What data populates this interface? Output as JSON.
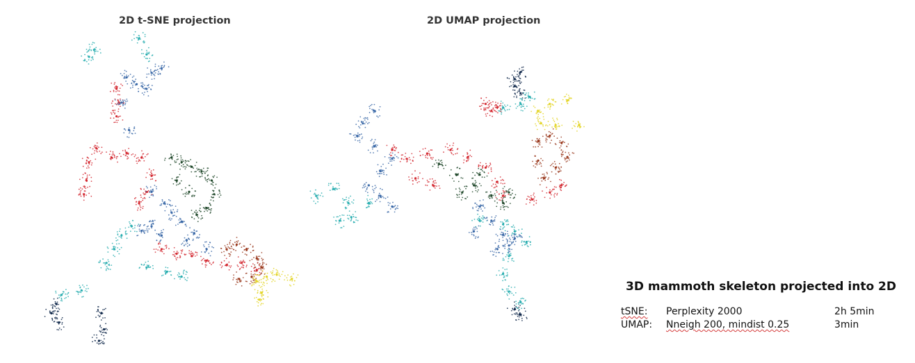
{
  "panels": [
    {
      "id": "tsne",
      "title": "2D t-SNE projection"
    },
    {
      "id": "umap",
      "title": "2D UMAP projection"
    }
  ],
  "annotation": {
    "title": "3D mammoth skeleton projected into 2D",
    "rows": [
      {
        "method": "tSNE:",
        "params": "Perplexity 2000",
        "time": "2h 5min"
      },
      {
        "method": "UMAP:",
        "params": "Nneigh 200, mindist 0.25",
        "time": "3min"
      }
    ]
  },
  "colors": {
    "red": "#d42a32",
    "blue": "#3c6aa8",
    "darkgreen": "#21492c",
    "teal": "#2aaeb0",
    "navy": "#142c4e",
    "brown": "#9a3a1e",
    "yellow": "#e4d62c"
  },
  "chart_data": [
    {
      "type": "scatter",
      "panel": "tsne",
      "title": "2D t-SNE projection",
      "xlabel": "",
      "ylabel": "",
      "axes": false,
      "grid": false,
      "legend": false,
      "series": [
        {
          "color": "red",
          "points": [
            [
              0.16,
              0.1
            ],
            [
              0.17,
              0.16
            ],
            [
              0.16,
              0.22
            ],
            [
              0.08,
              0.36
            ],
            [
              0.05,
              0.42
            ],
            [
              0.04,
              0.5
            ],
            [
              0.03,
              0.56
            ],
            [
              0.14,
              0.4
            ],
            [
              0.2,
              0.38
            ],
            [
              0.26,
              0.4
            ],
            [
              0.3,
              0.48
            ],
            [
              0.28,
              0.55
            ],
            [
              0.25,
              0.6
            ],
            [
              0.34,
              0.8
            ],
            [
              0.4,
              0.82
            ],
            [
              0.46,
              0.83
            ],
            [
              0.52,
              0.85
            ],
            [
              0.6,
              0.87
            ],
            [
              0.66,
              0.86
            ],
            [
              0.72,
              0.89
            ]
          ]
        },
        {
          "color": "blue",
          "points": [
            [
              0.2,
              0.05
            ],
            [
              0.24,
              0.08
            ],
            [
              0.28,
              0.1
            ],
            [
              0.3,
              0.03
            ],
            [
              0.34,
              0.01
            ],
            [
              0.18,
              0.16
            ],
            [
              0.21,
              0.28
            ],
            [
              0.3,
              0.55
            ],
            [
              0.35,
              0.6
            ],
            [
              0.38,
              0.64
            ],
            [
              0.42,
              0.68
            ],
            [
              0.3,
              0.7
            ],
            [
              0.26,
              0.72
            ],
            [
              0.34,
              0.74
            ],
            [
              0.44,
              0.76
            ],
            [
              0.47,
              0.73
            ],
            [
              0.52,
              0.8
            ]
          ]
        },
        {
          "color": "darkgreen",
          "points": [
            [
              0.38,
              0.4
            ],
            [
              0.42,
              0.42
            ],
            [
              0.46,
              0.44
            ],
            [
              0.5,
              0.46
            ],
            [
              0.54,
              0.5
            ],
            [
              0.55,
              0.56
            ],
            [
              0.52,
              0.62
            ],
            [
              0.48,
              0.65
            ],
            [
              0.4,
              0.5
            ],
            [
              0.45,
              0.55
            ]
          ]
        },
        {
          "color": "teal",
          "points": [
            [
              0.05,
              -0.04
            ],
            [
              0.07,
              -0.07
            ],
            [
              0.25,
              -0.12
            ],
            [
              0.28,
              -0.05
            ],
            [
              0.22,
              0.7
            ],
            [
              0.18,
              0.74
            ],
            [
              0.15,
              0.8
            ],
            [
              0.12,
              0.86
            ],
            [
              0.28,
              0.88
            ],
            [
              0.36,
              0.9
            ],
            [
              0.42,
              0.92
            ],
            [
              -0.06,
              1.0
            ],
            [
              0.02,
              0.98
            ]
          ]
        },
        {
          "color": "navy",
          "points": [
            [
              -0.08,
              1.04
            ],
            [
              -0.1,
              1.08
            ],
            [
              -0.07,
              1.12
            ],
            [
              0.1,
              1.08
            ],
            [
              0.11,
              1.15
            ],
            [
              0.09,
              1.2
            ]
          ]
        },
        {
          "color": "brown",
          "points": [
            [
              0.6,
              0.8
            ],
            [
              0.64,
              0.78
            ],
            [
              0.68,
              0.8
            ],
            [
              0.72,
              0.84
            ],
            [
              0.74,
              0.88
            ],
            [
              0.7,
              0.92
            ],
            [
              0.65,
              0.93
            ]
          ]
        },
        {
          "color": "yellow",
          "points": [
            [
              0.72,
              0.94
            ],
            [
              0.76,
              0.92
            ],
            [
              0.8,
              0.91
            ],
            [
              0.86,
              0.93
            ],
            [
              0.74,
              0.99
            ],
            [
              0.73,
              1.02
            ]
          ]
        }
      ]
    },
    {
      "type": "scatter",
      "panel": "umap",
      "title": "2D UMAP projection",
      "xlabel": "",
      "ylabel": "",
      "axes": false,
      "grid": false,
      "legend": false,
      "series": [
        {
          "color": "navy",
          "points": [
            [
              0.62,
              -0.2
            ],
            [
              0.64,
              -0.24
            ],
            [
              0.62,
              -0.16
            ],
            [
              0.64,
              -0.12
            ],
            [
              0.62,
              1.1
            ],
            [
              0.64,
              1.13
            ]
          ]
        },
        {
          "color": "teal",
          "points": [
            [
              0.58,
              -0.04
            ],
            [
              0.64,
              -0.06
            ],
            [
              0.67,
              -0.1
            ],
            [
              -0.06,
              0.46
            ],
            [
              0.0,
              0.42
            ],
            [
              0.05,
              0.5
            ],
            [
              0.06,
              0.58
            ],
            [
              0.02,
              0.6
            ],
            [
              0.12,
              0.5
            ],
            [
              0.5,
              0.6
            ],
            [
              0.58,
              0.62
            ],
            [
              0.62,
              0.66
            ],
            [
              0.66,
              0.72
            ],
            [
              0.6,
              0.8
            ],
            [
              0.58,
              0.9
            ],
            [
              0.6,
              1.0
            ],
            [
              0.64,
              1.06
            ]
          ]
        },
        {
          "color": "red",
          "points": [
            [
              0.52,
              -0.06
            ],
            [
              0.54,
              -0.02
            ],
            [
              0.56,
              -0.04
            ],
            [
              0.2,
              0.2
            ],
            [
              0.25,
              0.25
            ],
            [
              0.32,
              0.22
            ],
            [
              0.4,
              0.2
            ],
            [
              0.46,
              0.24
            ],
            [
              0.52,
              0.3
            ],
            [
              0.56,
              0.38
            ],
            [
              0.58,
              0.46
            ],
            [
              0.68,
              0.48
            ],
            [
              0.74,
              0.44
            ],
            [
              0.78,
              0.4
            ],
            [
              0.34,
              0.4
            ],
            [
              0.28,
              0.36
            ]
          ]
        },
        {
          "color": "blue",
          "points": [
            [
              0.14,
              -0.02
            ],
            [
              0.1,
              0.05
            ],
            [
              0.08,
              0.12
            ],
            [
              0.14,
              0.18
            ],
            [
              0.2,
              0.25
            ],
            [
              0.16,
              0.32
            ],
            [
              0.12,
              0.4
            ],
            [
              0.16,
              0.46
            ],
            [
              0.2,
              0.52
            ],
            [
              0.5,
              0.52
            ],
            [
              0.54,
              0.6
            ],
            [
              0.48,
              0.66
            ],
            [
              0.56,
              0.76
            ],
            [
              0.6,
              0.74
            ],
            [
              0.62,
              0.7
            ],
            [
              0.58,
              0.68
            ]
          ]
        },
        {
          "color": "darkgreen",
          "points": [
            [
              0.36,
              0.28
            ],
            [
              0.42,
              0.34
            ],
            [
              0.48,
              0.4
            ],
            [
              0.54,
              0.46
            ],
            [
              0.58,
              0.5
            ],
            [
              0.44,
              0.44
            ],
            [
              0.5,
              0.34
            ],
            [
              0.6,
              0.44
            ]
          ]
        },
        {
          "color": "brown",
          "points": [
            [
              0.7,
              0.15
            ],
            [
              0.74,
              0.12
            ],
            [
              0.78,
              0.16
            ],
            [
              0.8,
              0.24
            ],
            [
              0.76,
              0.3
            ],
            [
              0.72,
              0.36
            ],
            [
              0.7,
              0.26
            ]
          ]
        },
        {
          "color": "yellow",
          "points": [
            [
              0.7,
              -0.02
            ],
            [
              0.74,
              -0.06
            ],
            [
              0.8,
              -0.08
            ],
            [
              0.71,
              0.05
            ],
            [
              0.76,
              0.06
            ],
            [
              0.84,
              0.06
            ]
          ]
        }
      ]
    }
  ]
}
